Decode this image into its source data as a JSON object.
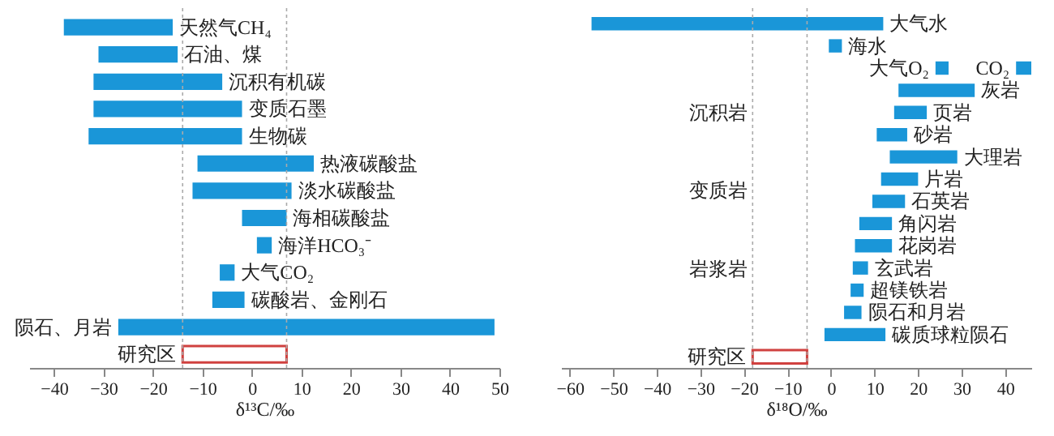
{
  "chart_data": [
    {
      "type": "bar",
      "orientation": "horizontal",
      "xlabel": "δ¹³C/‰",
      "xlim": [
        -45,
        50
      ],
      "xticks": [
        -40,
        -30,
        -20,
        -10,
        0,
        10,
        20,
        30,
        40,
        50
      ],
      "tick_labels": "x",
      "categories": [
        "天然气CH₄",
        "石油、煤",
        "沉积有机碳",
        "变质石墨",
        "生物碳",
        "热液碳酸盐",
        "淡水碳酸盐",
        "海相碳酸盐",
        "海洋HCO₃⁻",
        "大气CO₂",
        "碳酸岩、金刚石",
        null,
        null
      ],
      "series": [
        {
          "color": "#1a96d8",
          "base": [
            -38,
            -31,
            -32,
            -32,
            -33,
            -11,
            -12,
            -2,
            1,
            -6.5,
            -8,
            null,
            null
          ],
          "values": [
            22,
            16,
            26,
            30,
            31,
            23.5,
            20,
            9,
            3,
            3,
            6.5,
            null,
            null
          ]
        },
        {
          "name": "陨石、月岩",
          "color": "#1a96d8",
          "base": [
            null,
            null,
            null,
            null,
            null,
            null,
            null,
            null,
            null,
            null,
            null,
            -27,
            null
          ],
          "values": [
            null,
            null,
            null,
            null,
            null,
            null,
            null,
            null,
            null,
            null,
            null,
            76,
            null
          ]
        },
        {
          "name": "研究区",
          "color": "#d0413f",
          "line_style": "solid",
          "base": [
            null,
            null,
            null,
            null,
            null,
            null,
            null,
            null,
            null,
            null,
            null,
            null,
            -14
          ],
          "values": [
            null,
            null,
            null,
            null,
            null,
            null,
            null,
            null,
            null,
            null,
            null,
            null,
            21
          ]
        }
      ],
      "ref_lines": [
        {
          "axis": "x",
          "value": -14,
          "color": "#aaaaaa",
          "line_style": "dotted"
        },
        {
          "axis": "x",
          "value": 7,
          "color": "#aaaaaa",
          "line_style": "dotted"
        }
      ]
    },
    {
      "type": "bar",
      "orientation": "horizontal",
      "xlabel": "δ¹⁸O/‰",
      "xlim": [
        -62,
        46
      ],
      "xticks": [
        -60,
        -50,
        -40,
        -30,
        -20,
        -10,
        0,
        10,
        20,
        30,
        40
      ],
      "tick_labels": "x",
      "categories": [
        "大气水",
        "海水",
        null,
        "灰岩",
        "页岩",
        "砂岩",
        "大理岩",
        "片岩",
        "石英岩",
        "角闪岩",
        "花岗岩",
        "玄武岩",
        "超镁铁岩",
        "陨石和月岩",
        "碳质球粒陨石",
        null
      ],
      "series": [
        {
          "color": "#1a96d8",
          "base": [
            -55,
            -0.5,
            null,
            15.5,
            14.5,
            10.5,
            13.5,
            11.5,
            9.5,
            6.5,
            5.5,
            5,
            4.5,
            3,
            -1.5,
            null
          ],
          "values": [
            67,
            3,
            null,
            17.5,
            7.5,
            7,
            15.5,
            8.5,
            7.5,
            7.5,
            8.5,
            3.5,
            3,
            4,
            14,
            null
          ]
        },
        {
          "name": "大气O₂",
          "color": "#1a96d8",
          "base": [
            null,
            null,
            24,
            null,
            null,
            null,
            null,
            null,
            null,
            null,
            null,
            null,
            null,
            null,
            null,
            null
          ],
          "values": [
            null,
            null,
            3,
            null,
            null,
            null,
            null,
            null,
            null,
            null,
            null,
            null,
            null,
            null,
            null,
            null
          ]
        },
        {
          "name": "CO₂",
          "color": "#1a96d8",
          "base": [
            null,
            null,
            42.5,
            null,
            null,
            null,
            null,
            null,
            null,
            null,
            null,
            null,
            null,
            null,
            null,
            null
          ],
          "values": [
            null,
            null,
            3.5,
            null,
            null,
            null,
            null,
            null,
            null,
            null,
            null,
            null,
            null,
            null,
            null,
            null
          ]
        },
        {
          "name": "研究区",
          "color": "#d0413f",
          "line_style": "solid",
          "base": [
            null,
            null,
            null,
            null,
            null,
            null,
            null,
            null,
            null,
            null,
            null,
            null,
            null,
            null,
            null,
            -18
          ],
          "values": [
            null,
            null,
            null,
            null,
            null,
            null,
            null,
            null,
            null,
            null,
            null,
            null,
            null,
            null,
            null,
            12.5
          ]
        }
      ],
      "ref_lines": [
        {
          "axis": "x",
          "value": -18,
          "color": "#aaaaaa",
          "line_style": "dotted"
        },
        {
          "axis": "x",
          "value": -5.5,
          "color": "#aaaaaa",
          "line_style": "dotted"
        }
      ],
      "annotations": [
        "沉积岩",
        "变质岩",
        "岩浆岩"
      ]
    }
  ]
}
